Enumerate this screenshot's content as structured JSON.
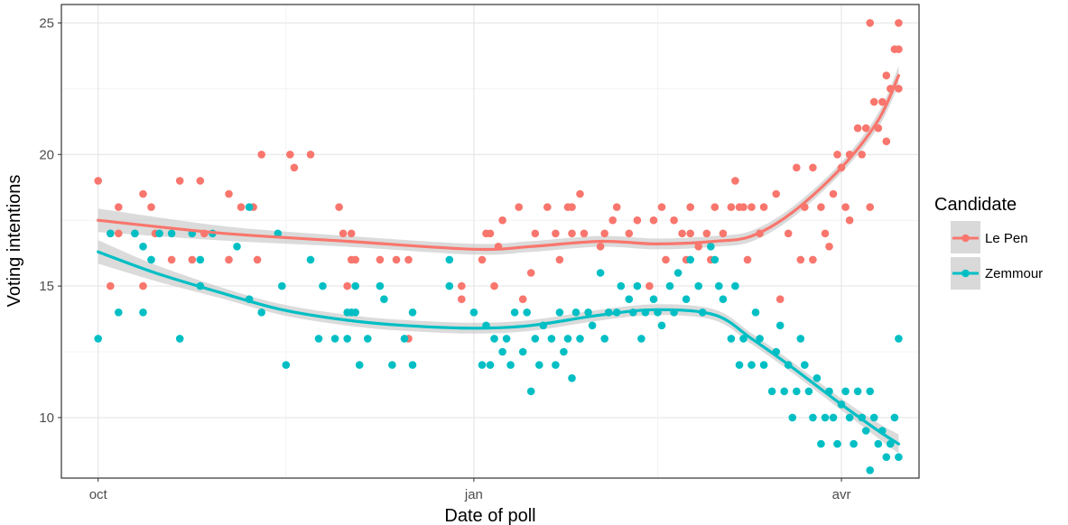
{
  "chart_data": {
    "type": "scatter",
    "xlabel": "Date of poll",
    "ylabel": "Voting intentions",
    "x_ticks": [
      {
        "date": "2021-10-01",
        "label": "oct"
      },
      {
        "date": "2022-01-01",
        "label": "jan"
      },
      {
        "date": "2022-04-01",
        "label": "avr"
      }
    ],
    "xlim": [
      "2021-09-22",
      "2022-04-20"
    ],
    "ylim": [
      7.7,
      25.7
    ],
    "y_ticks": [
      10,
      15,
      20,
      25
    ],
    "grid": true,
    "legend": {
      "title": "Candidate",
      "position": "right"
    },
    "series": [
      {
        "name": "Le Pen",
        "color": "#F8766D",
        "points": [
          [
            "2021-10-01",
            19
          ],
          [
            "2021-10-04",
            15
          ],
          [
            "2021-10-04",
            17
          ],
          [
            "2021-10-06",
            18
          ],
          [
            "2021-10-06",
            17
          ],
          [
            "2021-10-10",
            17
          ],
          [
            "2021-10-12",
            18.5
          ],
          [
            "2021-10-12",
            15
          ],
          [
            "2021-10-14",
            18
          ],
          [
            "2021-10-15",
            17
          ],
          [
            "2021-10-19",
            16
          ],
          [
            "2021-10-21",
            19
          ],
          [
            "2021-10-24",
            16
          ],
          [
            "2021-10-26",
            19
          ],
          [
            "2021-10-27",
            17
          ],
          [
            "2021-11-02",
            18.5
          ],
          [
            "2021-11-02",
            16
          ],
          [
            "2021-11-05",
            18
          ],
          [
            "2021-11-08",
            18
          ],
          [
            "2021-11-09",
            16
          ],
          [
            "2021-11-10",
            20
          ],
          [
            "2021-11-17",
            20
          ],
          [
            "2021-11-18",
            19.5
          ],
          [
            "2021-11-22",
            20
          ],
          [
            "2021-11-29",
            18
          ],
          [
            "2021-11-30",
            17
          ],
          [
            "2021-12-01",
            15
          ],
          [
            "2021-12-02",
            16
          ],
          [
            "2021-12-02",
            17
          ],
          [
            "2021-12-03",
            16
          ],
          [
            "2021-12-09",
            16
          ],
          [
            "2021-12-13",
            16
          ],
          [
            "2021-12-16",
            13
          ],
          [
            "2021-12-16",
            16
          ],
          [
            "2021-12-29",
            15
          ],
          [
            "2021-12-29",
            14.5
          ],
          [
            "2022-01-03",
            16
          ],
          [
            "2022-01-04",
            17
          ],
          [
            "2022-01-05",
            17
          ],
          [
            "2022-01-06",
            15
          ],
          [
            "2022-01-07",
            16.5
          ],
          [
            "2022-01-08",
            17.5
          ],
          [
            "2022-01-12",
            18
          ],
          [
            "2022-01-13",
            14.5
          ],
          [
            "2022-01-15",
            15.5
          ],
          [
            "2022-01-16",
            17
          ],
          [
            "2022-01-19",
            18
          ],
          [
            "2022-01-21",
            17
          ],
          [
            "2022-01-22",
            16
          ],
          [
            "2022-01-24",
            18
          ],
          [
            "2022-01-25",
            18
          ],
          [
            "2022-01-25",
            17
          ],
          [
            "2022-01-27",
            18.5
          ],
          [
            "2022-01-28",
            17
          ],
          [
            "2022-02-01",
            16.5
          ],
          [
            "2022-02-02",
            17
          ],
          [
            "2022-02-04",
            17.5
          ],
          [
            "2022-02-05",
            18
          ],
          [
            "2022-02-08",
            17
          ],
          [
            "2022-02-10",
            17.5
          ],
          [
            "2022-02-13",
            15
          ],
          [
            "2022-02-14",
            17.5
          ],
          [
            "2022-02-16",
            18
          ],
          [
            "2022-02-17",
            16
          ],
          [
            "2022-02-19",
            17.5
          ],
          [
            "2022-02-21",
            17
          ],
          [
            "2022-02-22",
            16
          ],
          [
            "2022-02-23",
            18
          ],
          [
            "2022-02-23",
            17
          ],
          [
            "2022-02-25",
            16.5
          ],
          [
            "2022-02-27",
            17
          ],
          [
            "2022-02-28",
            16
          ],
          [
            "2022-03-01",
            18
          ],
          [
            "2022-03-03",
            17
          ],
          [
            "2022-03-05",
            18
          ],
          [
            "2022-03-06",
            19
          ],
          [
            "2022-03-07",
            18
          ],
          [
            "2022-03-08",
            18
          ],
          [
            "2022-03-09",
            16
          ],
          [
            "2022-03-10",
            18
          ],
          [
            "2022-03-12",
            17
          ],
          [
            "2022-03-13",
            18
          ],
          [
            "2022-03-16",
            18.5
          ],
          [
            "2022-03-17",
            14.5
          ],
          [
            "2022-03-19",
            17
          ],
          [
            "2022-03-21",
            19.5
          ],
          [
            "2022-03-22",
            16
          ],
          [
            "2022-03-23",
            18
          ],
          [
            "2022-03-25",
            19.5
          ],
          [
            "2022-03-25",
            16
          ],
          [
            "2022-03-27",
            18
          ],
          [
            "2022-03-28",
            17
          ],
          [
            "2022-03-29",
            16.5
          ],
          [
            "2022-03-30",
            18.5
          ],
          [
            "2022-03-31",
            20
          ],
          [
            "2022-04-01",
            19.5
          ],
          [
            "2022-04-02",
            18
          ],
          [
            "2022-04-03",
            20
          ],
          [
            "2022-04-03",
            17.5
          ],
          [
            "2022-04-05",
            21
          ],
          [
            "2022-04-06",
            20
          ],
          [
            "2022-04-07",
            21
          ],
          [
            "2022-04-08",
            18
          ],
          [
            "2022-04-08",
            25
          ],
          [
            "2022-04-09",
            22
          ],
          [
            "2022-04-10",
            21
          ],
          [
            "2022-04-11",
            22
          ],
          [
            "2022-04-12",
            23
          ],
          [
            "2022-04-12",
            20.5
          ],
          [
            "2022-04-13",
            22.5
          ],
          [
            "2022-04-14",
            24
          ],
          [
            "2022-04-15",
            25
          ],
          [
            "2022-04-15",
            22.5
          ],
          [
            "2022-04-15",
            24
          ]
        ],
        "trend": [
          [
            "2021-10-01",
            17.5
          ],
          [
            "2021-11-01",
            17
          ],
          [
            "2021-12-01",
            16.7
          ],
          [
            "2022-01-01",
            16.4
          ],
          [
            "2022-01-15",
            16.5
          ],
          [
            "2022-02-01",
            16.7
          ],
          [
            "2022-02-15",
            16.6
          ],
          [
            "2022-03-01",
            16.7
          ],
          [
            "2022-03-10",
            16.9
          ],
          [
            "2022-03-20",
            17.8
          ],
          [
            "2022-04-01",
            19.5
          ],
          [
            "2022-04-10",
            21.3
          ],
          [
            "2022-04-15",
            23
          ]
        ]
      },
      {
        "name": "Zemmour",
        "color": "#00BFC4",
        "points": [
          [
            "2021-10-01",
            13
          ],
          [
            "2021-10-04",
            17
          ],
          [
            "2021-10-06",
            14
          ],
          [
            "2021-10-10",
            17
          ],
          [
            "2021-10-12",
            16.5
          ],
          [
            "2021-10-12",
            14
          ],
          [
            "2021-10-14",
            16
          ],
          [
            "2021-10-16",
            17
          ],
          [
            "2021-10-19",
            17
          ],
          [
            "2021-10-21",
            13
          ],
          [
            "2021-10-24",
            17
          ],
          [
            "2021-10-26",
            16
          ],
          [
            "2021-10-26",
            15
          ],
          [
            "2021-10-29",
            17
          ],
          [
            "2021-11-04",
            16.5
          ],
          [
            "2021-11-07",
            18
          ],
          [
            "2021-11-07",
            14.5
          ],
          [
            "2021-11-10",
            14
          ],
          [
            "2021-11-14",
            17
          ],
          [
            "2021-11-15",
            15
          ],
          [
            "2021-11-16",
            12
          ],
          [
            "2021-11-22",
            16
          ],
          [
            "2021-11-24",
            13
          ],
          [
            "2021-11-25",
            15
          ],
          [
            "2021-11-28",
            13
          ],
          [
            "2021-12-01",
            14
          ],
          [
            "2021-12-01",
            13
          ],
          [
            "2021-12-02",
            14
          ],
          [
            "2021-12-03",
            15
          ],
          [
            "2021-12-03",
            14
          ],
          [
            "2021-12-04",
            12
          ],
          [
            "2021-12-06",
            13
          ],
          [
            "2021-12-09",
            15
          ],
          [
            "2021-12-10",
            14.5
          ],
          [
            "2021-12-12",
            12
          ],
          [
            "2021-12-15",
            13
          ],
          [
            "2021-12-17",
            12
          ],
          [
            "2021-12-17",
            14
          ],
          [
            "2021-12-26",
            15
          ],
          [
            "2021-12-26",
            16
          ],
          [
            "2022-01-01",
            14
          ],
          [
            "2022-01-03",
            12
          ],
          [
            "2022-01-04",
            13.5
          ],
          [
            "2022-01-05",
            12
          ],
          [
            "2022-01-06",
            13
          ],
          [
            "2022-01-08",
            12.5
          ],
          [
            "2022-01-09",
            13
          ],
          [
            "2022-01-10",
            12
          ],
          [
            "2022-01-11",
            14
          ],
          [
            "2022-01-13",
            12.5
          ],
          [
            "2022-01-14",
            14
          ],
          [
            "2022-01-15",
            11
          ],
          [
            "2022-01-16",
            13
          ],
          [
            "2022-01-17",
            12
          ],
          [
            "2022-01-18",
            13.5
          ],
          [
            "2022-01-20",
            13
          ],
          [
            "2022-01-21",
            12
          ],
          [
            "2022-01-22",
            14
          ],
          [
            "2022-01-23",
            12.5
          ],
          [
            "2022-01-24",
            13
          ],
          [
            "2022-01-25",
            11.5
          ],
          [
            "2022-01-26",
            14
          ],
          [
            "2022-01-27",
            13
          ],
          [
            "2022-01-29",
            14
          ],
          [
            "2022-01-30",
            13.5
          ],
          [
            "2022-02-01",
            15.5
          ],
          [
            "2022-02-02",
            13
          ],
          [
            "2022-02-03",
            14
          ],
          [
            "2022-02-05",
            14
          ],
          [
            "2022-02-06",
            15
          ],
          [
            "2022-02-08",
            14.5
          ],
          [
            "2022-02-09",
            14
          ],
          [
            "2022-02-10",
            15
          ],
          [
            "2022-02-11",
            13
          ],
          [
            "2022-02-12",
            14
          ],
          [
            "2022-02-14",
            14.5
          ],
          [
            "2022-02-15",
            14
          ],
          [
            "2022-02-16",
            13.5
          ],
          [
            "2022-02-18",
            15
          ],
          [
            "2022-02-19",
            14
          ],
          [
            "2022-02-20",
            15.5
          ],
          [
            "2022-02-22",
            14.5
          ],
          [
            "2022-02-23",
            16
          ],
          [
            "2022-02-25",
            15
          ],
          [
            "2022-02-26",
            14
          ],
          [
            "2022-02-28",
            16.5
          ],
          [
            "2022-03-01",
            16
          ],
          [
            "2022-03-02",
            15
          ],
          [
            "2022-03-03",
            14.5
          ],
          [
            "2022-03-05",
            13
          ],
          [
            "2022-03-06",
            15
          ],
          [
            "2022-03-07",
            12
          ],
          [
            "2022-03-08",
            13
          ],
          [
            "2022-03-10",
            12
          ],
          [
            "2022-03-11",
            14
          ],
          [
            "2022-03-12",
            13
          ],
          [
            "2022-03-13",
            12
          ],
          [
            "2022-03-15",
            11
          ],
          [
            "2022-03-16",
            12.5
          ],
          [
            "2022-03-17",
            13.5
          ],
          [
            "2022-03-18",
            11
          ],
          [
            "2022-03-19",
            12
          ],
          [
            "2022-03-20",
            10
          ],
          [
            "2022-03-21",
            11
          ],
          [
            "2022-03-22",
            13
          ],
          [
            "2022-03-23",
            12
          ],
          [
            "2022-03-24",
            11
          ],
          [
            "2022-03-25",
            10
          ],
          [
            "2022-03-26",
            11.5
          ],
          [
            "2022-03-27",
            9
          ],
          [
            "2022-03-28",
            10
          ],
          [
            "2022-03-29",
            11
          ],
          [
            "2022-03-30",
            10
          ],
          [
            "2022-03-31",
            9
          ],
          [
            "2022-04-01",
            10.5
          ],
          [
            "2022-04-02",
            11
          ],
          [
            "2022-04-03",
            10
          ],
          [
            "2022-04-04",
            9
          ],
          [
            "2022-04-05",
            11
          ],
          [
            "2022-04-06",
            10
          ],
          [
            "2022-04-07",
            9.5
          ],
          [
            "2022-04-08",
            8
          ],
          [
            "2022-04-08",
            11
          ],
          [
            "2022-04-09",
            10
          ],
          [
            "2022-04-10",
            9
          ],
          [
            "2022-04-11",
            9.5
          ],
          [
            "2022-04-12",
            8.5
          ],
          [
            "2022-04-13",
            9
          ],
          [
            "2022-04-14",
            10
          ],
          [
            "2022-04-15",
            13
          ],
          [
            "2022-04-15",
            8.5
          ]
        ],
        "trend": [
          [
            "2021-10-01",
            16.3
          ],
          [
            "2021-10-15",
            15.5
          ],
          [
            "2021-11-01",
            14.7
          ],
          [
            "2021-11-15",
            14.1
          ],
          [
            "2021-12-01",
            13.7
          ],
          [
            "2021-12-15",
            13.5
          ],
          [
            "2022-01-01",
            13.4
          ],
          [
            "2022-01-15",
            13.5
          ],
          [
            "2022-02-01",
            13.9
          ],
          [
            "2022-02-15",
            14.1
          ],
          [
            "2022-03-01",
            13.9
          ],
          [
            "2022-03-10",
            13
          ],
          [
            "2022-03-20",
            11.9
          ],
          [
            "2022-04-01",
            10.5
          ],
          [
            "2022-04-10",
            9.5
          ],
          [
            "2022-04-15",
            9
          ]
        ]
      }
    ]
  }
}
